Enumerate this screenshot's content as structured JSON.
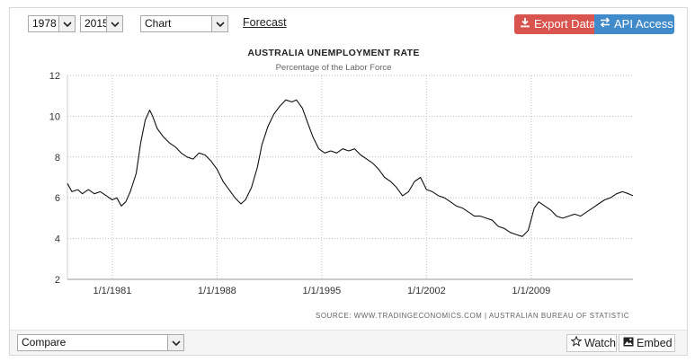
{
  "toolbar": {
    "start_year": "1978",
    "end_year": "2015",
    "chart_type": "Chart",
    "forecast_label": "Forecast",
    "export_label": "Export Data",
    "api_label": "API Access"
  },
  "source_text": "SOURCE: WWW.TRADINGECONOMICS.COM  |  AUSTRALIAN BUREAU OF STATISTIC",
  "bottom": {
    "compare_label": "Compare",
    "watch_label": "Watch",
    "embed_label": "Embed"
  },
  "colors": {
    "line": "#111111",
    "grid": "#bfbfbf",
    "export": "#d9534f",
    "api": "#428bca"
  },
  "chart_data": {
    "type": "line",
    "title": "AUSTRALIA UNEMPLOYMENT RATE",
    "subtitle": "Percentage of the Labor Force",
    "xlabel": "",
    "ylabel": "",
    "ylim": [
      2,
      12
    ],
    "xlim": [
      1978.0,
      2015.8
    ],
    "yticks": [
      2,
      4,
      6,
      8,
      10,
      12
    ],
    "xticks": [
      {
        "x": 1981.0,
        "label": "1/1/1981"
      },
      {
        "x": 1988.0,
        "label": "1/1/1988"
      },
      {
        "x": 1995.0,
        "label": "1/1/1995"
      },
      {
        "x": 2002.0,
        "label": "1/1/2002"
      },
      {
        "x": 2009.0,
        "label": "1/1/2009"
      }
    ],
    "grid": true,
    "series": [
      {
        "values": [
          [
            1978.0,
            6.7
          ],
          [
            1978.3,
            6.3
          ],
          [
            1978.7,
            6.4
          ],
          [
            1979.0,
            6.2
          ],
          [
            1979.4,
            6.4
          ],
          [
            1979.8,
            6.2
          ],
          [
            1980.2,
            6.3
          ],
          [
            1980.6,
            6.1
          ],
          [
            1981.0,
            5.9
          ],
          [
            1981.3,
            6.0
          ],
          [
            1981.6,
            5.6
          ],
          [
            1981.9,
            5.8
          ],
          [
            1982.2,
            6.3
          ],
          [
            1982.6,
            7.2
          ],
          [
            1982.9,
            8.7
          ],
          [
            1983.2,
            9.8
          ],
          [
            1983.5,
            10.3
          ],
          [
            1983.7,
            10.0
          ],
          [
            1984.0,
            9.4
          ],
          [
            1984.4,
            9.0
          ],
          [
            1984.8,
            8.7
          ],
          [
            1985.2,
            8.5
          ],
          [
            1985.6,
            8.2
          ],
          [
            1986.0,
            8.0
          ],
          [
            1986.4,
            7.9
          ],
          [
            1986.8,
            8.2
          ],
          [
            1987.2,
            8.1
          ],
          [
            1987.6,
            7.8
          ],
          [
            1988.0,
            7.4
          ],
          [
            1988.4,
            6.8
          ],
          [
            1988.8,
            6.4
          ],
          [
            1989.2,
            6.0
          ],
          [
            1989.6,
            5.7
          ],
          [
            1989.9,
            5.9
          ],
          [
            1990.3,
            6.5
          ],
          [
            1990.7,
            7.5
          ],
          [
            1991.0,
            8.6
          ],
          [
            1991.4,
            9.5
          ],
          [
            1991.8,
            10.1
          ],
          [
            1992.2,
            10.5
          ],
          [
            1992.6,
            10.8
          ],
          [
            1993.0,
            10.7
          ],
          [
            1993.3,
            10.8
          ],
          [
            1993.7,
            10.4
          ],
          [
            1994.0,
            9.8
          ],
          [
            1994.4,
            9.0
          ],
          [
            1994.8,
            8.4
          ],
          [
            1995.2,
            8.2
          ],
          [
            1995.6,
            8.3
          ],
          [
            1996.0,
            8.2
          ],
          [
            1996.4,
            8.4
          ],
          [
            1996.8,
            8.3
          ],
          [
            1997.2,
            8.4
          ],
          [
            1997.6,
            8.1
          ],
          [
            1998.0,
            7.9
          ],
          [
            1998.4,
            7.7
          ],
          [
            1998.8,
            7.4
          ],
          [
            1999.2,
            7.0
          ],
          [
            1999.6,
            6.8
          ],
          [
            2000.0,
            6.5
          ],
          [
            2000.4,
            6.1
          ],
          [
            2000.8,
            6.3
          ],
          [
            2001.2,
            6.8
          ],
          [
            2001.6,
            7.0
          ],
          [
            2002.0,
            6.4
          ],
          [
            2002.4,
            6.3
          ],
          [
            2002.8,
            6.1
          ],
          [
            2003.2,
            6.0
          ],
          [
            2003.6,
            5.8
          ],
          [
            2004.0,
            5.6
          ],
          [
            2004.4,
            5.5
          ],
          [
            2004.8,
            5.3
          ],
          [
            2005.2,
            5.1
          ],
          [
            2005.6,
            5.1
          ],
          [
            2006.0,
            5.0
          ],
          [
            2006.4,
            4.9
          ],
          [
            2006.8,
            4.6
          ],
          [
            2007.2,
            4.5
          ],
          [
            2007.6,
            4.3
          ],
          [
            2008.0,
            4.2
          ],
          [
            2008.4,
            4.1
          ],
          [
            2008.8,
            4.4
          ],
          [
            2009.2,
            5.5
          ],
          [
            2009.5,
            5.8
          ],
          [
            2009.9,
            5.6
          ],
          [
            2010.3,
            5.4
          ],
          [
            2010.7,
            5.1
          ],
          [
            2011.1,
            5.0
          ],
          [
            2011.5,
            5.1
          ],
          [
            2011.9,
            5.2
          ],
          [
            2012.3,
            5.1
          ],
          [
            2012.7,
            5.3
          ],
          [
            2013.1,
            5.5
          ],
          [
            2013.5,
            5.7
          ],
          [
            2013.9,
            5.9
          ],
          [
            2014.3,
            6.0
          ],
          [
            2014.7,
            6.2
          ],
          [
            2015.1,
            6.3
          ],
          [
            2015.5,
            6.2
          ],
          [
            2015.8,
            6.1
          ]
        ]
      }
    ]
  }
}
